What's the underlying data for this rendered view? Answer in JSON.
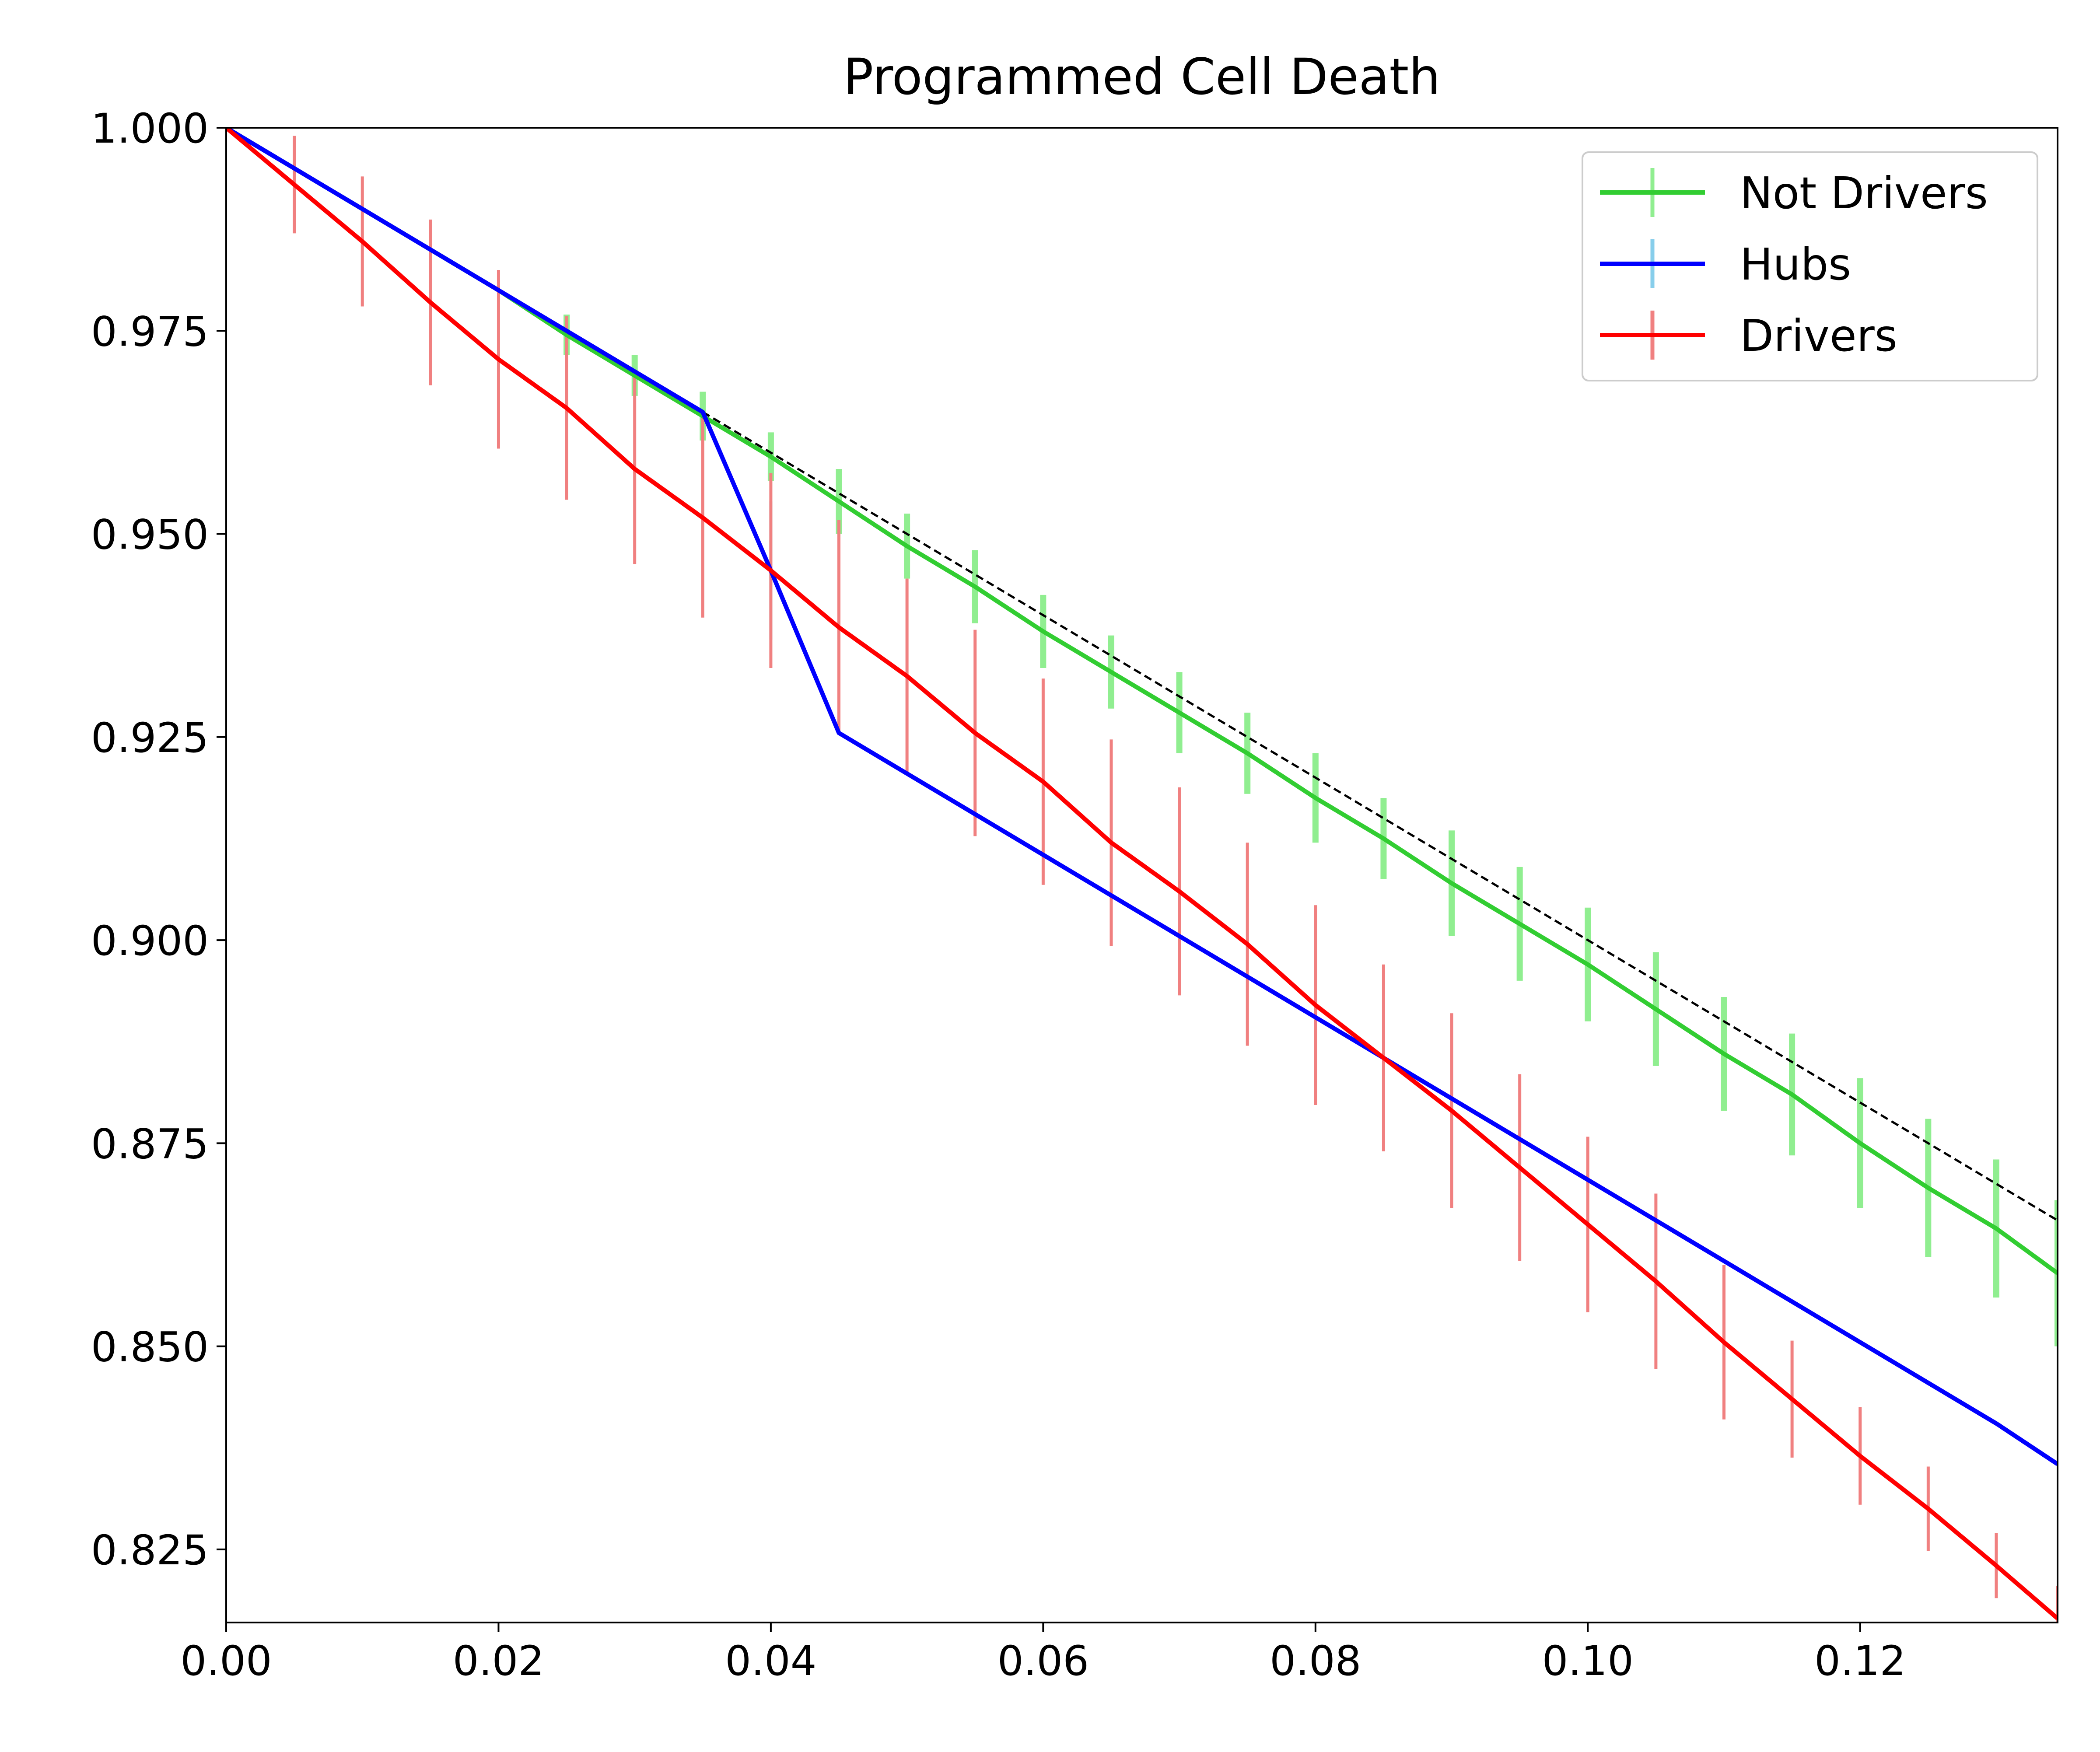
{
  "chart_data": {
    "type": "line",
    "title": "Programmed Cell Death",
    "xlabel": "",
    "ylabel": "",
    "xlim": [
      0.0,
      0.1345
    ],
    "ylim": [
      0.816,
      1.0
    ],
    "grid": false,
    "legend_position": "top-right",
    "x_ticks": [
      "0.00",
      "0.02",
      "0.04",
      "0.06",
      "0.08",
      "0.10",
      "0.12"
    ],
    "y_ticks": [
      "1.000",
      "0.975",
      "0.950",
      "0.925",
      "0.900",
      "0.875",
      "0.850",
      "0.825"
    ],
    "x_tick_values": [
      0.0,
      0.02,
      0.04,
      0.06,
      0.08,
      0.1,
      0.12
    ],
    "y_tick_values": [
      1.0,
      0.975,
      0.95,
      0.925,
      0.9,
      0.875,
      0.85,
      0.825
    ],
    "reference_line": {
      "style": "dashed",
      "color": "#000000",
      "x": [
        0.035,
        0.1345
      ],
      "y": [
        0.965,
        0.8655
      ]
    },
    "series": [
      {
        "name": "Not Drivers",
        "color": "#32cd32",
        "error_color": "#90ee90",
        "x": [
          0.0,
          0.005,
          0.01,
          0.015,
          0.02,
          0.025,
          0.03,
          0.035,
          0.04,
          0.045,
          0.05,
          0.055,
          0.06,
          0.065,
          0.07,
          0.075,
          0.08,
          0.085,
          0.09,
          0.095,
          0.1,
          0.105,
          0.11,
          0.115,
          0.12,
          0.125,
          0.13,
          0.1345
        ],
        "y": [
          1.0,
          0.995,
          0.99,
          0.985,
          0.98,
          0.9745,
          0.9695,
          0.9645,
          0.9595,
          0.954,
          0.9485,
          0.9435,
          0.938,
          0.933,
          0.928,
          0.923,
          0.9175,
          0.9125,
          0.907,
          0.902,
          0.897,
          0.8915,
          0.886,
          0.881,
          0.875,
          0.8695,
          0.8645,
          0.859
        ],
        "yerr": [
          0.0,
          0.0,
          0.0,
          0.0,
          0.0,
          0.0025,
          0.0025,
          0.003,
          0.003,
          0.004,
          0.004,
          0.0045,
          0.0045,
          0.0045,
          0.005,
          0.005,
          0.0055,
          0.005,
          0.0065,
          0.007,
          0.007,
          0.007,
          0.007,
          0.0075,
          0.008,
          0.0085,
          0.0085,
          0.009
        ]
      },
      {
        "name": "Hubs",
        "color": "#0000ff",
        "error_color": "#87ceeb",
        "x": [
          0.0,
          0.005,
          0.01,
          0.015,
          0.02,
          0.025,
          0.03,
          0.035,
          0.04,
          0.045,
          0.05,
          0.055,
          0.06,
          0.065,
          0.07,
          0.075,
          0.08,
          0.085,
          0.09,
          0.095,
          0.1,
          0.105,
          0.11,
          0.115,
          0.12,
          0.125,
          0.13,
          0.1345
        ],
        "y": [
          1.0,
          0.995,
          0.99,
          0.985,
          0.98,
          0.975,
          0.97,
          0.965,
          0.9455,
          0.9255,
          0.9205,
          0.9155,
          0.9105,
          0.9055,
          0.9005,
          0.8955,
          0.8905,
          0.8855,
          0.8805,
          0.8755,
          0.8705,
          0.8655,
          0.8605,
          0.8555,
          0.8505,
          0.8455,
          0.8405,
          0.8355
        ],
        "yerr": [
          0.0,
          0.0,
          0.0,
          0.0,
          0.0,
          0.0,
          0.0,
          0.0,
          0.0085,
          0.0,
          0.0,
          0.0,
          0.0,
          0.0,
          0.0,
          0.0,
          0.0,
          0.0,
          0.0,
          0.0,
          0.0,
          0.0,
          0.0,
          0.0,
          0.0,
          0.0,
          0.0,
          0.0
        ]
      },
      {
        "name": "Drivers",
        "color": "#ff0000",
        "error_color": "#f08080",
        "x": [
          0.0,
          0.005,
          0.01,
          0.015,
          0.02,
          0.025,
          0.03,
          0.035,
          0.04,
          0.045,
          0.05,
          0.055,
          0.06,
          0.065,
          0.07,
          0.075,
          0.08,
          0.085,
          0.09,
          0.095,
          0.1,
          0.105,
          0.11,
          0.115,
          0.12,
          0.125,
          0.13,
          0.1345
        ],
        "y": [
          1.0,
          0.993,
          0.986,
          0.9785,
          0.9715,
          0.9655,
          0.958,
          0.952,
          0.9455,
          0.9385,
          0.9325,
          0.9255,
          0.9195,
          0.912,
          0.906,
          0.8995,
          0.892,
          0.8855,
          0.879,
          0.872,
          0.865,
          0.858,
          0.8505,
          0.8435,
          0.8365,
          0.83,
          0.823,
          0.8165
        ],
        "yerr": [
          0.0,
          0.006,
          0.008,
          0.0102,
          0.011,
          0.0113,
          0.0117,
          0.0123,
          0.012,
          0.0132,
          0.012,
          0.0127,
          0.0127,
          0.0127,
          0.0128,
          0.0125,
          0.0123,
          0.0115,
          0.012,
          0.0115,
          0.0108,
          0.0108,
          0.0095,
          0.0072,
          0.006,
          0.0052,
          0.004,
          0.004
        ]
      }
    ]
  }
}
